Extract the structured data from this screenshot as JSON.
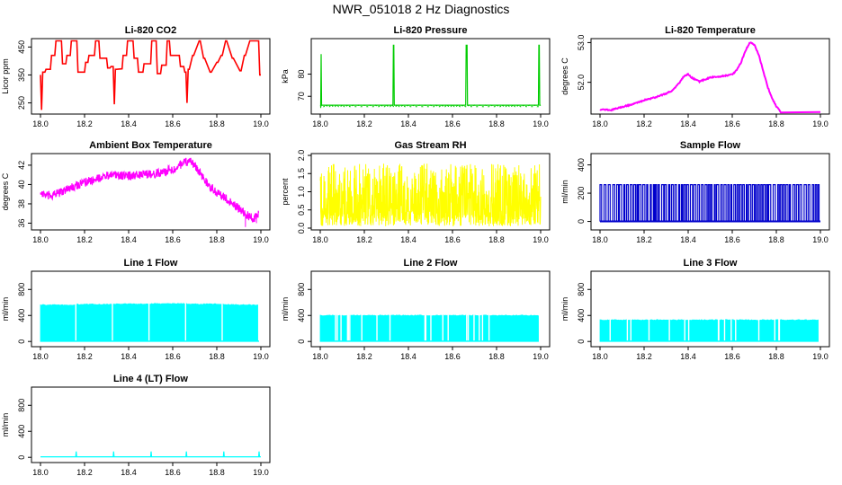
{
  "page": {
    "title": "NWR_051018  2 Hz Diagnostics"
  },
  "chart_data": [
    {
      "type": "line",
      "title": "Li-820 CO2",
      "ylabel": "Licor ppm",
      "xlim": [
        18.0,
        19.0
      ],
      "ylim": [
        210,
        480
      ],
      "xticks": [
        "18.0",
        "18.2",
        "18.4",
        "18.6",
        "18.8",
        "19.0"
      ],
      "yticks": [
        {
          "v": 250,
          "t": "250"
        },
        {
          "v": 350,
          "t": "350"
        },
        {
          "v": 450,
          "t": "450"
        }
      ],
      "colour": "#ff0000",
      "series": [
        {
          "x": [
            18.0,
            18.005,
            18.01,
            18.02,
            18.025,
            18.045,
            18.05,
            18.065,
            18.07,
            18.095,
            18.1,
            18.115,
            18.12,
            18.135,
            18.14,
            18.165,
            18.17,
            18.2,
            18.205,
            18.215,
            18.22,
            18.245,
            18.25,
            18.265,
            18.27,
            18.3,
            18.305,
            18.315,
            18.32,
            18.33,
            18.335,
            18.34,
            18.345,
            18.37,
            18.375,
            18.39,
            18.395,
            18.42,
            18.425,
            18.44,
            18.445,
            18.465,
            18.47,
            18.5,
            18.505,
            18.525,
            18.53,
            18.545,
            18.55,
            18.57,
            18.575,
            18.585,
            18.59,
            18.63,
            18.635,
            18.65,
            18.655,
            18.66,
            18.665,
            18.67,
            18.675,
            18.69,
            18.695,
            18.72,
            18.725,
            18.74,
            18.745,
            18.77,
            18.775,
            18.8,
            18.805,
            18.82,
            18.825,
            18.84,
            18.845,
            18.87,
            18.875,
            18.905,
            18.91,
            18.925,
            18.93,
            18.95,
            18.955,
            18.99,
            18.995,
            19.0
          ],
          "y": [
            350,
            225,
            360,
            360,
            370,
            370,
            420,
            420,
            472,
            472,
            390,
            390,
            420,
            420,
            472,
            472,
            360,
            360,
            395,
            395,
            420,
            420,
            472,
            472,
            410,
            410,
            375,
            375,
            380,
            380,
            245,
            370,
            370,
            372,
            420,
            420,
            472,
            472,
            410,
            410,
            360,
            360,
            390,
            390,
            472,
            472,
            355,
            355,
            385,
            385,
            472,
            472,
            420,
            420,
            380,
            380,
            360,
            360,
            250,
            370,
            370,
            420,
            420,
            472,
            472,
            410,
            410,
            360,
            360,
            395,
            395,
            420,
            420,
            472,
            472,
            410,
            410,
            365,
            365,
            420,
            420,
            472,
            472,
            472,
            350,
            350
          ]
        }
      ]
    },
    {
      "type": "line",
      "title": "Li-820 Pressure",
      "ylabel": "kPa",
      "xlim": [
        18.0,
        19.0
      ],
      "ylim": [
        62,
        96
      ],
      "xticks": [
        "18.0",
        "18.2",
        "18.4",
        "18.6",
        "18.8",
        "19.0"
      ],
      "yticks": [
        {
          "v": 70,
          "t": "70"
        },
        {
          "v": 80,
          "t": "80"
        }
      ],
      "colour": "#00cc00",
      "series": [
        {
          "x": [
            18.0,
            18.002,
            18.004,
            18.006,
            18.3,
            18.33,
            18.332,
            18.334,
            18.336,
            18.66,
            18.662,
            18.664,
            18.666,
            18.668,
            18.99,
            18.992,
            18.994,
            18.996,
            19.0
          ],
          "y": [
            65,
            65,
            89,
            66,
            66,
            66,
            93,
            93,
            66,
            66,
            93,
            93,
            93,
            66,
            66,
            93,
            93,
            66,
            66
          ]
        }
      ]
    },
    {
      "type": "line",
      "title": "Li-820 Temperature",
      "ylabel": "degrees C",
      "xlim": [
        18.0,
        19.0
      ],
      "ylim": [
        51.2,
        53.1
      ],
      "xticks": [
        "18.0",
        "18.2",
        "18.4",
        "18.6",
        "18.8",
        "19.0"
      ],
      "yticks": [
        {
          "v": 52.0,
          "t": "52.0"
        },
        {
          "v": 53.0,
          "t": "53.0"
        }
      ],
      "colour": "#ff00ff",
      "series": [
        {
          "x": [
            18.0,
            18.05,
            18.1,
            18.15,
            18.2,
            18.25,
            18.3,
            18.33,
            18.36,
            18.38,
            18.4,
            18.42,
            18.45,
            18.48,
            18.5,
            18.55,
            18.6,
            18.62,
            18.64,
            18.66,
            18.68,
            18.7,
            18.72,
            18.74,
            18.76,
            18.78,
            18.8,
            18.82,
            18.9,
            18.99,
            19.0
          ],
          "y": [
            51.32,
            51.3,
            51.38,
            51.45,
            51.55,
            51.62,
            51.72,
            51.8,
            51.98,
            52.15,
            52.2,
            52.1,
            52.02,
            52.08,
            52.12,
            52.15,
            52.2,
            52.3,
            52.5,
            52.8,
            53.0,
            52.95,
            52.7,
            52.3,
            51.9,
            51.6,
            51.4,
            51.25,
            51.25,
            51.25,
            51.25
          ]
        }
      ]
    },
    {
      "type": "line",
      "title": "Ambient Box Temperature",
      "ylabel": "degrees C",
      "xlim": [
        18.0,
        19.0
      ],
      "ylim": [
        35.3,
        43.2
      ],
      "xticks": [
        "18.0",
        "18.2",
        "18.4",
        "18.6",
        "18.8",
        "19.0"
      ],
      "yticks": [
        {
          "v": 36,
          "t": "36"
        },
        {
          "v": 38,
          "t": "38"
        },
        {
          "v": 40,
          "t": "40"
        },
        {
          "v": 42,
          "t": "42"
        }
      ],
      "colour": "#ff00ff",
      "series": [
        {
          "x": [
            18.0,
            18.03,
            18.06,
            18.1,
            18.15,
            18.2,
            18.25,
            18.3,
            18.35,
            18.4,
            18.45,
            18.5,
            18.55,
            18.6,
            18.63,
            18.66,
            18.68,
            18.7,
            18.73,
            18.76,
            18.8,
            18.85,
            18.9,
            18.93,
            18.95,
            18.97,
            18.99
          ],
          "y": [
            39.2,
            38.8,
            38.9,
            39.3,
            39.8,
            40.2,
            40.6,
            40.9,
            41.0,
            40.9,
            41.0,
            41.1,
            41.2,
            41.6,
            42.0,
            42.3,
            42.4,
            42.0,
            41.0,
            40.0,
            39.2,
            38.4,
            37.5,
            37.0,
            36.6,
            36.5,
            37.0
          ]
        }
      ]
    },
    {
      "type": "line",
      "title": "Gas Stream RH",
      "ylabel": "percent",
      "xlim": [
        18.0,
        19.0
      ],
      "ylim": [
        -0.05,
        2.05
      ],
      "xticks": [
        "18.0",
        "18.2",
        "18.4",
        "18.6",
        "18.8",
        "19.0"
      ],
      "yticks": [
        {
          "v": 0.0,
          "t": "0.0"
        },
        {
          "v": 0.5,
          "t": "0.5"
        },
        {
          "v": 1.0,
          "t": "1.0"
        },
        {
          "v": 1.5,
          "t": "1.5"
        },
        {
          "v": 2.0,
          "t": "2.0"
        }
      ],
      "colour": "#ffff00",
      "series": [
        {
          "x": [
            18.0,
            19.0
          ],
          "y": [
            0.0,
            1.8
          ]
        }
      ]
    },
    {
      "type": "line",
      "title": "Sample Flow",
      "ylabel": "ml/min",
      "xlim": [
        18.0,
        19.0
      ],
      "ylim": [
        -60,
        480
      ],
      "xticks": [
        "18.0",
        "18.2",
        "18.4",
        "18.6",
        "18.8",
        "19.0"
      ],
      "yticks": [
        {
          "v": 0,
          "t": "0"
        },
        {
          "v": 200,
          "t": "200"
        },
        {
          "v": 400,
          "t": "400"
        }
      ],
      "colour": "#0000cc",
      "series": [
        {
          "x": [
            18.0,
            19.0
          ],
          "y": [
            0,
            260
          ]
        }
      ]
    },
    {
      "type": "area",
      "title": "Line 1 Flow",
      "ylabel": "ml/min",
      "xlim": [
        18.0,
        19.0
      ],
      "ylim": [
        -80,
        1080
      ],
      "xticks": [
        "18.0",
        "18.2",
        "18.4",
        "18.6",
        "18.8",
        "19.0"
      ],
      "yticks": [
        {
          "v": 0,
          "t": "0"
        },
        {
          "v": 400,
          "t": "400"
        },
        {
          "v": 800,
          "t": "800"
        }
      ],
      "colour": "#00ffff",
      "series": [
        {
          "x": [
            18.0,
            18.16,
            18.165,
            18.33,
            18.335,
            18.5,
            18.505,
            18.66,
            18.665,
            18.83,
            18.835,
            18.99,
            19.0
          ],
          "y": [
            560,
            560,
            570,
            570,
            575,
            575,
            580,
            580,
            575,
            575,
            565,
            560,
            0
          ]
        }
      ]
    },
    {
      "type": "area",
      "title": "Line 2 Flow",
      "ylabel": "ml/min",
      "xlim": [
        18.0,
        19.0
      ],
      "ylim": [
        -80,
        1080
      ],
      "xticks": [
        "18.0",
        "18.2",
        "18.4",
        "18.6",
        "18.8",
        "19.0"
      ],
      "yticks": [
        {
          "v": 0,
          "t": "0"
        },
        {
          "v": 400,
          "t": "400"
        },
        {
          "v": 800,
          "t": "800"
        }
      ],
      "colour": "#00ffff",
      "series": [
        {
          "x": [
            18.0,
            19.0
          ],
          "y": [
            400,
            410
          ]
        }
      ]
    },
    {
      "type": "area",
      "title": "Line 3 Flow",
      "ylabel": "ml/min",
      "xlim": [
        18.0,
        19.0
      ],
      "ylim": [
        -80,
        1080
      ],
      "xticks": [
        "18.0",
        "18.2",
        "18.4",
        "18.6",
        "18.8",
        "19.0"
      ],
      "yticks": [
        {
          "v": 0,
          "t": "0"
        },
        {
          "v": 400,
          "t": "400"
        },
        {
          "v": 800,
          "t": "800"
        }
      ],
      "colour": "#00ffff",
      "series": [
        {
          "x": [
            18.0,
            19.0
          ],
          "y": [
            330,
            330
          ]
        }
      ]
    },
    {
      "type": "line",
      "title": "Line 4 (LT) Flow",
      "ylabel": "ml/min",
      "xlim": [
        18.0,
        19.0
      ],
      "ylim": [
        -80,
        1080
      ],
      "xticks": [
        "18.0",
        "18.2",
        "18.4",
        "18.6",
        "18.8",
        "19.0"
      ],
      "yticks": [
        {
          "v": 0,
          "t": "0"
        },
        {
          "v": 400,
          "t": "400"
        },
        {
          "v": 800,
          "t": "800"
        }
      ],
      "colour": "#00ffff",
      "series": [
        {
          "x": [
            18.0,
            18.16,
            18.162,
            18.164,
            18.33,
            18.332,
            18.334,
            18.5,
            18.502,
            18.504,
            18.66,
            18.662,
            18.664,
            18.83,
            18.832,
            18.834,
            18.99,
            18.992,
            18.994,
            19.0
          ],
          "y": [
            8,
            8,
            90,
            8,
            8,
            90,
            8,
            8,
            90,
            8,
            8,
            90,
            8,
            8,
            90,
            8,
            8,
            90,
            8,
            8
          ]
        }
      ]
    }
  ]
}
